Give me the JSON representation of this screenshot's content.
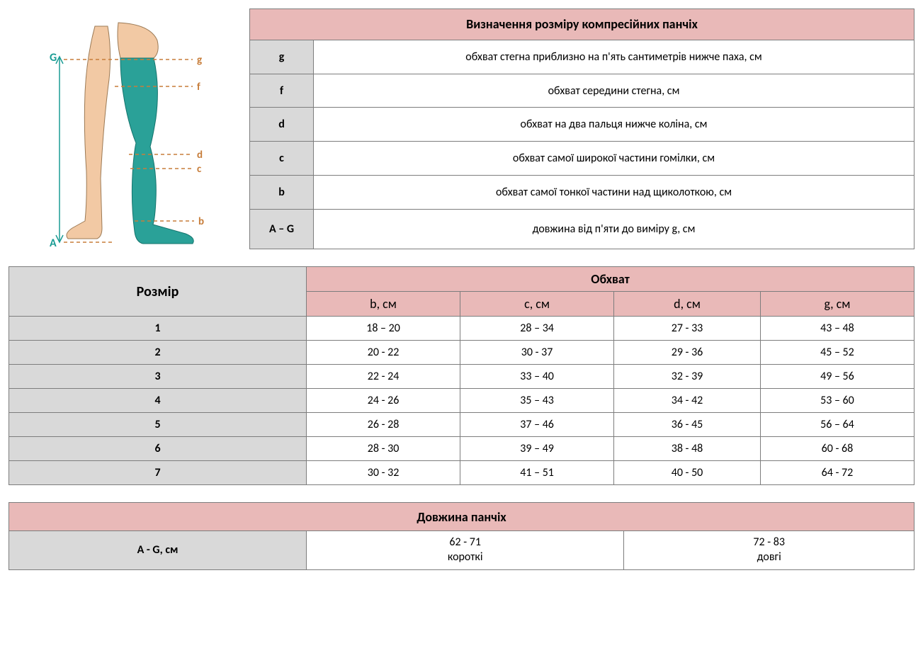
{
  "colors": {
    "pink": "#e9b9b8",
    "gray": "#d9d9d9",
    "border": "#7d7d7d",
    "teal": "#2aa198",
    "skin": "#f2c9a4",
    "dash": "#c77d3a",
    "label_teal": "#1a9c94"
  },
  "def_table": {
    "title": "Визначення розміру компресійних панчіх",
    "rows": [
      {
        "code": "g",
        "desc": "обхват стегна приблизно на п'ять сантиметрів нижче паха, см"
      },
      {
        "code": "f",
        "desc": "обхват середини стегна, см"
      },
      {
        "code": "d",
        "desc": "обхват на два пальця нижче коліна, см"
      },
      {
        "code": "c",
        "desc": "обхват самої широкої частини гомілки, см"
      },
      {
        "code": "b",
        "desc": "обхват самої тонкої частини над щиколоткою, см"
      },
      {
        "code": "A – G",
        "desc": "довжина від п'яти до виміру g, см"
      }
    ]
  },
  "size_table": {
    "size_label": "Розмір",
    "girth_label": "Обхват",
    "columns": [
      "b, см",
      "c, см",
      "d, см",
      "g, см"
    ],
    "rows": [
      {
        "size": "1",
        "cells": [
          "18 – 20",
          "28 – 34",
          "27 - 33",
          "43 – 48"
        ]
      },
      {
        "size": "2",
        "cells": [
          "20 - 22",
          "30 - 37",
          "29 - 36",
          "45 – 52"
        ]
      },
      {
        "size": "3",
        "cells": [
          "22 - 24",
          "33 – 40",
          "32 - 39",
          "49 – 56"
        ]
      },
      {
        "size": "4",
        "cells": [
          "24 - 26",
          "35 – 43",
          "34 - 42",
          "53 – 60"
        ]
      },
      {
        "size": "5",
        "cells": [
          "26 - 28",
          "37 – 46",
          "36 - 45",
          "56 – 64"
        ]
      },
      {
        "size": "6",
        "cells": [
          "28 - 30",
          "39 – 49",
          "38 - 48",
          "60 - 68"
        ]
      },
      {
        "size": "7",
        "cells": [
          "30 - 32",
          "41 – 51",
          "40 - 50",
          "64 - 72"
        ]
      }
    ]
  },
  "len_table": {
    "title": "Довжина панчіх",
    "label": "A - G, см",
    "short_range": "62 - 71",
    "short_label": "короткі",
    "long_range": "72 - 83",
    "long_label": "довгі"
  },
  "diagram": {
    "labels": {
      "G": "G",
      "A": "A",
      "g": "g",
      "f": "f",
      "d": "d",
      "c": "c",
      "b": "b"
    }
  }
}
